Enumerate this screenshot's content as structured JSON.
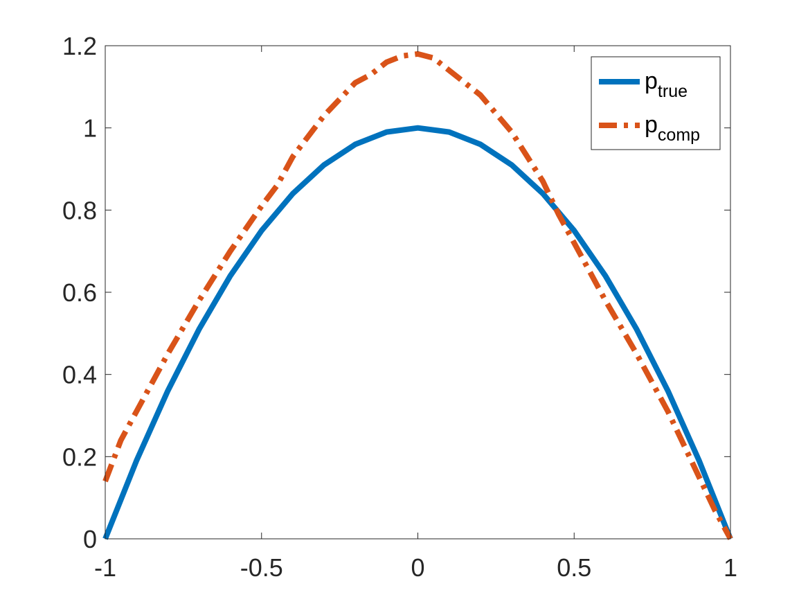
{
  "chart_data": {
    "type": "line",
    "title": "",
    "xlabel": "",
    "ylabel": "",
    "xlim": [
      -1,
      1
    ],
    "ylim": [
      0,
      1.2
    ],
    "xticks": [
      -1,
      -0.5,
      0,
      0.5,
      1
    ],
    "xtick_labels": [
      "-1",
      "-0.5",
      "0",
      "0.5",
      "1"
    ],
    "yticks": [
      0,
      0.2,
      0.4,
      0.6,
      0.8,
      1,
      1.2
    ],
    "ytick_labels": [
      "0",
      "0.2",
      "0.4",
      "0.6",
      "0.8",
      "1",
      "1.2"
    ],
    "grid": false,
    "legend_position": "top-right",
    "series": [
      {
        "name": "p_true",
        "legend_main": "p",
        "legend_sub": "true",
        "color": "#0072BD",
        "style": "solid",
        "x": [
          -1,
          -0.9,
          -0.8,
          -0.7,
          -0.6,
          -0.5,
          -0.4,
          -0.3,
          -0.2,
          -0.1,
          0,
          0.1,
          0.2,
          0.3,
          0.4,
          0.5,
          0.6,
          0.7,
          0.8,
          0.9,
          1
        ],
        "y": [
          0,
          0.19,
          0.36,
          0.51,
          0.64,
          0.75,
          0.84,
          0.91,
          0.96,
          0.99,
          1,
          0.99,
          0.96,
          0.91,
          0.84,
          0.75,
          0.64,
          0.51,
          0.36,
          0.19,
          0
        ]
      },
      {
        "name": "p_comp",
        "legend_main": "p",
        "legend_sub": "comp",
        "color": "#D95319",
        "style": "dashed",
        "x": [
          -1,
          -0.95,
          -0.9,
          -0.8,
          -0.7,
          -0.6,
          -0.5,
          -0.45,
          -0.4,
          -0.3,
          -0.2,
          -0.15,
          -0.1,
          -0.05,
          0,
          0.05,
          0.1,
          0.15,
          0.2,
          0.3,
          0.4,
          0.45,
          0.5,
          0.6,
          0.7,
          0.8,
          0.9,
          0.95,
          1
        ],
        "y": [
          0.14,
          0.24,
          0.31,
          0.45,
          0.58,
          0.7,
          0.81,
          0.86,
          0.93,
          1.03,
          1.11,
          1.13,
          1.16,
          1.175,
          1.18,
          1.17,
          1.14,
          1.11,
          1.08,
          0.99,
          0.87,
          0.79,
          0.72,
          0.58,
          0.45,
          0.31,
          0.15,
          0.07,
          0
        ]
      }
    ]
  }
}
